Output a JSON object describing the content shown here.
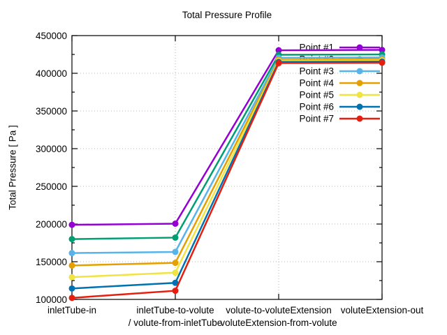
{
  "window": {
    "background": "#ffffff"
  },
  "chart_data": {
    "type": "line",
    "title": "Total Pressure Profile",
    "ylabel": "Total Pressure [ Pa ]",
    "xlabel": "",
    "ylim": [
      100000,
      450000
    ],
    "ytick_step": 50000,
    "minor_ytick_step": 25000,
    "ytick_labels": [
      "100000",
      "150000",
      "200000",
      "250000",
      "300000",
      "350000",
      "400000",
      "450000"
    ],
    "grid": true,
    "grid_style": "dotted",
    "grid_color": "#b3b3b3",
    "legend_position": "top-right-inside",
    "categories": [
      [
        "inletTube-in"
      ],
      [
        "inletTube-to-volute",
        "/ volute-from-inletTube"
      ],
      [
        "volute-to-voluteExtension",
        "voluteExtension-from-volute"
      ],
      [
        "voluteExtension-out"
      ]
    ],
    "series": [
      {
        "name": "Point #1",
        "color": "#9400D3",
        "values": [
          199000,
          200500,
          430500,
          431000
        ]
      },
      {
        "name": "Point #2",
        "color": "#009E73",
        "values": [
          180000,
          182000,
          424500,
          425000
        ]
      },
      {
        "name": "Point #3",
        "color": "#56B4E9",
        "values": [
          161500,
          163000,
          420500,
          421000
        ]
      },
      {
        "name": "Point #4",
        "color": "#E69F00",
        "values": [
          145000,
          148500,
          418000,
          418500
        ]
      },
      {
        "name": "Point #5",
        "color": "#F0E442",
        "values": [
          129500,
          135500,
          416500,
          417000
        ]
      },
      {
        "name": "Point #6",
        "color": "#0072B2",
        "values": [
          114500,
          122000,
          415000,
          415500
        ]
      },
      {
        "name": "Point #7",
        "color": "#E51E10",
        "values": [
          102000,
          111500,
          413500,
          414000
        ]
      }
    ]
  }
}
